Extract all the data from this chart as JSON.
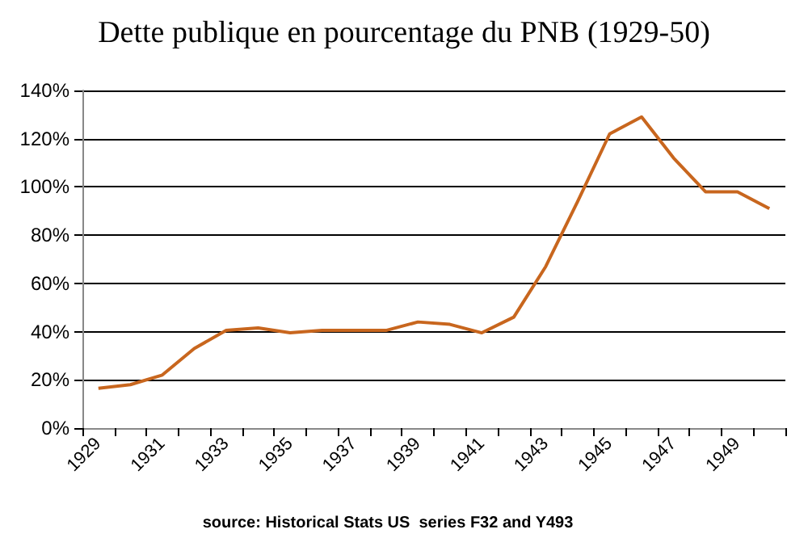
{
  "chart_data": {
    "type": "line",
    "title": "Dette publique en pourcentage du PNB (1929-50)",
    "categories": [
      "1929",
      null,
      "1931",
      null,
      "1933",
      null,
      "1935",
      null,
      "1937",
      null,
      "1939",
      null,
      "1941",
      null,
      "1943",
      null,
      "1945",
      null,
      "1947",
      null,
      "1949",
      null
    ],
    "series": [
      {
        "color": "#c8661e",
        "values": [
          16.5,
          18,
          22,
          33,
          40.5,
          41.5,
          39.5,
          40.5,
          40.5,
          40.5,
          44,
          43,
          39.5,
          46,
          67,
          94,
          122,
          129,
          112,
          98,
          98,
          91
        ]
      }
    ],
    "ylim": [
      0,
      140
    ],
    "yticks": [
      {
        "value": 0,
        "label": "0%"
      },
      {
        "value": 20,
        "label": "20%"
      },
      {
        "value": 40,
        "label": "40%"
      },
      {
        "value": 60,
        "label": "60%"
      },
      {
        "value": 80,
        "label": "80%"
      },
      {
        "value": 100,
        "label": "100%"
      },
      {
        "value": 120,
        "label": "120%"
      },
      {
        "value": 140,
        "label": "140%"
      }
    ],
    "grid": "y",
    "marker": "none",
    "line_style": "solid",
    "annotations": [
      "source: Historical Stats US  series F32 and Y493"
    ]
  }
}
